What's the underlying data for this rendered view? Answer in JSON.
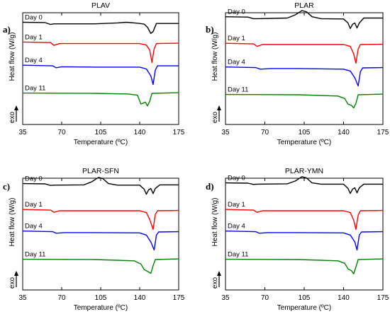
{
  "chart_data": [
    {
      "type": "line",
      "panel": "a)",
      "title": "PLAV",
      "xlabel": "Temperature (ºC)",
      "ylabel": "Heat flow (W/g)",
      "direction_label": "exo",
      "xlim": [
        35,
        175
      ],
      "xticks": [
        35,
        70,
        105,
        140,
        175
      ],
      "yticks_shown": false,
      "series": [
        {
          "name": "Day 0",
          "color": "#000000",
          "points": [
            [
              35,
              0.4
            ],
            [
              55,
              0.35
            ],
            [
              60,
              0.05
            ],
            [
              63,
              0.15
            ],
            [
              70,
              0.15
            ],
            [
              100,
              0.15
            ],
            [
              120,
              0.3
            ],
            [
              128,
              0.4
            ],
            [
              138,
              0.25
            ],
            [
              144,
              0.1
            ],
            [
              147,
              -0.4
            ],
            [
              150,
              -1.4
            ],
            [
              152,
              -1.1
            ],
            [
              155,
              0.2
            ],
            [
              165,
              0.2
            ],
            [
              175,
              0.2
            ]
          ]
        },
        {
          "name": "Day 1",
          "color": "#ff0000",
          "points": [
            [
              35,
              0.3
            ],
            [
              60,
              0.2
            ],
            [
              63,
              -0.25
            ],
            [
              68,
              0.05
            ],
            [
              100,
              0.05
            ],
            [
              140,
              0.05
            ],
            [
              146,
              -0.2
            ],
            [
              149,
              -1.0
            ],
            [
              151,
              -3.0
            ],
            [
              153,
              -0.8
            ],
            [
              155,
              0.05
            ],
            [
              175,
              0.1
            ]
          ]
        },
        {
          "name": "Day 4",
          "color": "#0000ff",
          "points": [
            [
              35,
              0.2
            ],
            [
              62,
              0.1
            ],
            [
              65,
              -0.2
            ],
            [
              70,
              -0.05
            ],
            [
              100,
              -0.1
            ],
            [
              140,
              -0.1
            ],
            [
              146,
              -0.4
            ],
            [
              150,
              -1.5
            ],
            [
              152,
              -2.9
            ],
            [
              154,
              -0.6
            ],
            [
              156,
              0.1
            ],
            [
              175,
              0.1
            ]
          ]
        },
        {
          "name": "Day 11",
          "color": "#008000",
          "points": [
            [
              35,
              0.05
            ],
            [
              100,
              0.0
            ],
            [
              130,
              -0.1
            ],
            [
              138,
              -0.3
            ],
            [
              141,
              -1.7
            ],
            [
              143,
              -1.6
            ],
            [
              145,
              -1.4
            ],
            [
              147,
              -2.0
            ],
            [
              149,
              -1.3
            ],
            [
              151,
              0.0
            ],
            [
              175,
              0.1
            ]
          ]
        }
      ]
    },
    {
      "type": "line",
      "panel": "b)",
      "title": "PLAR",
      "xlabel": "Temperature (ºC)",
      "ylabel": "Heat flow (W/g)",
      "direction_label": "exo",
      "xlim": [
        35,
        175
      ],
      "xticks": [
        35,
        70,
        105,
        140,
        175
      ],
      "yticks_shown": false,
      "series": [
        {
          "name": "Day 0",
          "color": "#000000",
          "points": [
            [
              35,
              0.6
            ],
            [
              55,
              0.55
            ],
            [
              60,
              0.3
            ],
            [
              63,
              0.3
            ],
            [
              90,
              0.4
            ],
            [
              97,
              0.9
            ],
            [
              103,
              1.6
            ],
            [
              107,
              1.4
            ],
            [
              112,
              0.6
            ],
            [
              120,
              0.3
            ],
            [
              140,
              0.25
            ],
            [
              144,
              -0.4
            ],
            [
              146,
              -1.3
            ],
            [
              148,
              -0.6
            ],
            [
              150,
              -0.4
            ],
            [
              152,
              -1.2
            ],
            [
              154,
              -0.4
            ],
            [
              158,
              0.4
            ],
            [
              175,
              0.4
            ]
          ]
        },
        {
          "name": "Day 1",
          "color": "#ff0000",
          "points": [
            [
              35,
              0.2
            ],
            [
              60,
              0.1
            ],
            [
              63,
              -0.3
            ],
            [
              68,
              0.0
            ],
            [
              100,
              0.0
            ],
            [
              140,
              0.0
            ],
            [
              146,
              -0.3
            ],
            [
              149,
              -1.5
            ],
            [
              151,
              -3.0
            ],
            [
              153,
              -0.7
            ],
            [
              155,
              0.0
            ],
            [
              175,
              0.05
            ]
          ]
        },
        {
          "name": "Day 4",
          "color": "#0000ff",
          "points": [
            [
              35,
              0.15
            ],
            [
              62,
              0.05
            ],
            [
              66,
              -0.2
            ],
            [
              75,
              -0.1
            ],
            [
              100,
              -0.1
            ],
            [
              140,
              -0.2
            ],
            [
              146,
              -0.5
            ],
            [
              150,
              -1.6
            ],
            [
              153,
              -2.9
            ],
            [
              155,
              -0.6
            ],
            [
              157,
              0.0
            ],
            [
              175,
              0.05
            ]
          ]
        },
        {
          "name": "Day 11",
          "color": "#008000",
          "points": [
            [
              35,
              0.05
            ],
            [
              100,
              0.0
            ],
            [
              135,
              -0.2
            ],
            [
              141,
              -0.6
            ],
            [
              144,
              -1.5
            ],
            [
              147,
              -1.7
            ],
            [
              149,
              -2.1
            ],
            [
              151,
              -1.4
            ],
            [
              153,
              0.0
            ],
            [
              175,
              0.1
            ]
          ]
        }
      ]
    },
    {
      "type": "line",
      "panel": "c)",
      "title": "PLAR-SFN",
      "xlabel": "Temperature (ºC)",
      "ylabel": "Heat flow (W/g)",
      "direction_label": "exo",
      "xlim": [
        35,
        175
      ],
      "xticks": [
        35,
        70,
        105,
        140,
        175
      ],
      "yticks_shown": false,
      "series": [
        {
          "name": "Day 0",
          "color": "#000000",
          "points": [
            [
              35,
              0.5
            ],
            [
              55,
              0.45
            ],
            [
              60,
              0.2
            ],
            [
              63,
              0.25
            ],
            [
              90,
              0.3
            ],
            [
              97,
              0.8
            ],
            [
              103,
              1.5
            ],
            [
              107,
              1.3
            ],
            [
              112,
              0.5
            ],
            [
              120,
              0.25
            ],
            [
              140,
              0.25
            ],
            [
              144,
              -0.4
            ],
            [
              146,
              -1.2
            ],
            [
              148,
              -0.5
            ],
            [
              150,
              -0.3
            ],
            [
              152,
              -1.1
            ],
            [
              154,
              -0.3
            ],
            [
              158,
              0.3
            ],
            [
              175,
              0.3
            ]
          ]
        },
        {
          "name": "Day 1",
          "color": "#ff0000",
          "points": [
            [
              35,
              0.2
            ],
            [
              60,
              0.1
            ],
            [
              63,
              -0.25
            ],
            [
              68,
              0.0
            ],
            [
              100,
              0.0
            ],
            [
              140,
              0.0
            ],
            [
              146,
              -0.3
            ],
            [
              149,
              -1.4
            ],
            [
              152,
              -3.0
            ],
            [
              154,
              -0.6
            ],
            [
              156,
              0.0
            ],
            [
              175,
              0.05
            ]
          ]
        },
        {
          "name": "Day 4",
          "color": "#0000ff",
          "points": [
            [
              35,
              0.15
            ],
            [
              62,
              0.05
            ],
            [
              65,
              -0.2
            ],
            [
              72,
              -0.1
            ],
            [
              100,
              -0.1
            ],
            [
              140,
              -0.15
            ],
            [
              146,
              -0.5
            ],
            [
              150,
              -1.6
            ],
            [
              153,
              -2.9
            ],
            [
              155,
              -0.5
            ],
            [
              157,
              0.0
            ],
            [
              175,
              0.05
            ]
          ]
        },
        {
          "name": "Day 11",
          "color": "#008000",
          "points": [
            [
              35,
              0.05
            ],
            [
              100,
              0.0
            ],
            [
              135,
              -0.2
            ],
            [
              141,
              -0.7
            ],
            [
              144,
              -1.6
            ],
            [
              147,
              -1.9
            ],
            [
              150,
              -2.2
            ],
            [
              152,
              -1.0
            ],
            [
              154,
              0.0
            ],
            [
              175,
              0.1
            ]
          ]
        }
      ]
    },
    {
      "type": "line",
      "panel": "d)",
      "title": "PLAR-YMN",
      "xlabel": "Temperature (ºC)",
      "ylabel": "Heat flow (W/g)",
      "direction_label": "exo",
      "xlim": [
        35,
        175
      ],
      "xticks": [
        35,
        70,
        105,
        140,
        175
      ],
      "yticks_shown": false,
      "series": [
        {
          "name": "Day 0",
          "color": "#000000",
          "points": [
            [
              35,
              0.5
            ],
            [
              55,
              0.45
            ],
            [
              60,
              0.25
            ],
            [
              63,
              0.3
            ],
            [
              90,
              0.35
            ],
            [
              97,
              0.8
            ],
            [
              103,
              1.5
            ],
            [
              107,
              1.3
            ],
            [
              112,
              0.5
            ],
            [
              120,
              0.3
            ],
            [
              140,
              0.3
            ],
            [
              144,
              -0.4
            ],
            [
              146,
              -1.2
            ],
            [
              148,
              -0.5
            ],
            [
              150,
              -0.3
            ],
            [
              152,
              -1.1
            ],
            [
              154,
              -0.3
            ],
            [
              158,
              0.3
            ],
            [
              175,
              0.3
            ]
          ]
        },
        {
          "name": "Day 1",
          "color": "#ff0000",
          "points": [
            [
              35,
              0.2
            ],
            [
              60,
              0.1
            ],
            [
              63,
              -0.25
            ],
            [
              68,
              0.0
            ],
            [
              100,
              0.0
            ],
            [
              140,
              0.0
            ],
            [
              146,
              -0.3
            ],
            [
              149,
              -1.5
            ],
            [
              151,
              -3.0
            ],
            [
              153,
              -0.7
            ],
            [
              155,
              0.0
            ],
            [
              175,
              0.05
            ]
          ]
        },
        {
          "name": "Day 4",
          "color": "#0000ff",
          "points": [
            [
              35,
              0.15
            ],
            [
              62,
              0.05
            ],
            [
              65,
              -0.2
            ],
            [
              72,
              -0.1
            ],
            [
              100,
              -0.1
            ],
            [
              140,
              -0.15
            ],
            [
              146,
              -0.5
            ],
            [
              150,
              -1.6
            ],
            [
              152,
              -2.9
            ],
            [
              154,
              -0.5
            ],
            [
              156,
              0.0
            ],
            [
              175,
              0.05
            ]
          ]
        },
        {
          "name": "Day 11",
          "color": "#008000",
          "points": [
            [
              35,
              0.05
            ],
            [
              100,
              0.0
            ],
            [
              135,
              -0.2
            ],
            [
              141,
              -0.6
            ],
            [
              144,
              -1.5
            ],
            [
              147,
              -1.8
            ],
            [
              149,
              -2.3
            ],
            [
              151,
              -1.2
            ],
            [
              153,
              0.0
            ],
            [
              175,
              0.1
            ]
          ]
        }
      ]
    }
  ]
}
